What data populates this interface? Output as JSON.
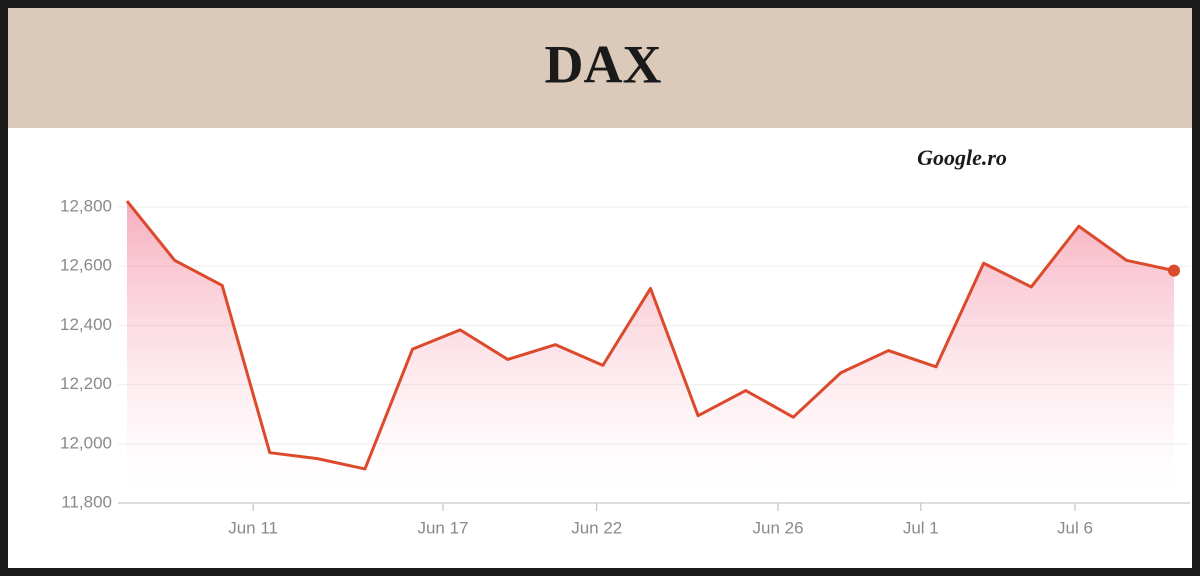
{
  "chart_data": {
    "type": "line",
    "title": "DAX",
    "annotation": "Google.ro",
    "x": [
      0,
      1,
      2,
      3,
      4,
      5,
      6,
      7,
      8,
      9,
      10,
      11,
      12,
      13,
      14,
      15,
      16,
      17,
      18,
      19,
      20,
      21,
      22
    ],
    "series": [
      {
        "color": "#dc4a2c",
        "values": [
          12820,
          12620,
          12535,
          11970,
          11950,
          11915,
          12320,
          12385,
          12285,
          12335,
          12265,
          12525,
          12095,
          12180,
          12090,
          12240,
          12315,
          12260,
          12610,
          12530,
          12735,
          12620,
          12585
        ]
      }
    ],
    "xlim": [
      0,
      22
    ],
    "xticks": [
      {
        "value": 2.65,
        "label": "Jun 11"
      },
      {
        "value": 6.64,
        "label": "Jun 17"
      },
      {
        "value": 9.87,
        "label": "Jun 22"
      },
      {
        "value": 13.68,
        "label": "Jun 26"
      },
      {
        "value": 16.68,
        "label": "Jul 1"
      },
      {
        "value": 19.92,
        "label": "Jul 6"
      }
    ],
    "ylim": [
      11800,
      12900
    ],
    "yticks": [
      {
        "value": 11800,
        "label": "11,800"
      },
      {
        "value": 12000,
        "label": "12,000"
      },
      {
        "value": 12200,
        "label": "12,200"
      },
      {
        "value": 12400,
        "label": "12,400"
      },
      {
        "value": 12600,
        "label": "12,600"
      },
      {
        "value": 12800,
        "label": "12,800"
      }
    ],
    "grid": true
  }
}
